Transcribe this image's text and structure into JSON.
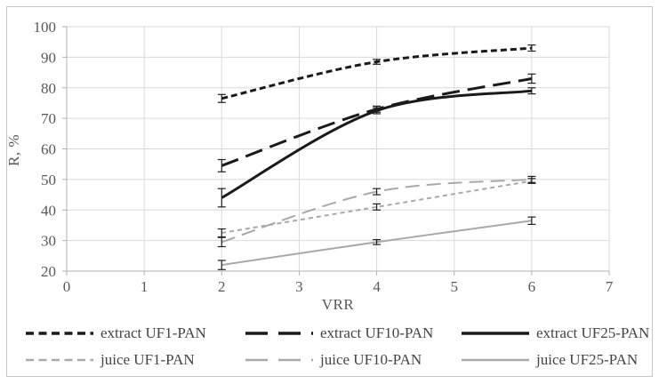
{
  "figure": {
    "background": "#ffffff",
    "frame_border_color": "#c6c6c6"
  },
  "chart_data": {
    "type": "line",
    "title": "",
    "xlabel": "VRR",
    "ylabel": "R, %",
    "xlim": [
      0,
      7
    ],
    "ylim": [
      20,
      100
    ],
    "x_ticks": [
      0,
      1,
      2,
      3,
      4,
      5,
      6,
      7
    ],
    "y_ticks": [
      20,
      30,
      40,
      50,
      60,
      70,
      80,
      90,
      100
    ],
    "grid": true,
    "legend_position": "bottom",
    "x": [
      2,
      4,
      6
    ],
    "series": [
      {
        "name": "extract UF1-PAN",
        "values": [
          76.5,
          88.5,
          93
        ],
        "errors": [
          1.3,
          0.8,
          1.0
        ],
        "color": "#1a1a1a",
        "dash": "dotted",
        "width": 3
      },
      {
        "name": "extract UF10-PAN",
        "values": [
          54.5,
          73,
          83
        ],
        "errors": [
          2.0,
          1.0,
          1.5
        ],
        "color": "#1a1a1a",
        "dash": "dashed",
        "width": 3
      },
      {
        "name": "extract UF25-PAN",
        "values": [
          44,
          72.5,
          79
        ],
        "errors": [
          3.0,
          1.0,
          1.0
        ],
        "color": "#1a1a1a",
        "dash": "solid",
        "width": 3
      },
      {
        "name": "juice UF1-PAN",
        "values": [
          32.5,
          41,
          49.5
        ],
        "errors": [
          1.3,
          1.0,
          0.8
        ],
        "color": "#a9a9a9",
        "dash": "dotted",
        "width": 2
      },
      {
        "name": "juice UF10-PAN",
        "values": [
          29.5,
          46,
          50
        ],
        "errors": [
          1.5,
          1.0,
          1.0
        ],
        "color": "#a9a9a9",
        "dash": "dashed",
        "width": 2
      },
      {
        "name": "juice UF25-PAN",
        "values": [
          22,
          29.5,
          36.5
        ],
        "errors": [
          1.5,
          0.8,
          1.2
        ],
        "color": "#a9a9a9",
        "dash": "solid",
        "width": 2
      }
    ],
    "error_bar_color": "#1f1f1f",
    "gridline_color": "#d9d9d9",
    "axis_line_color": "#b2b2b2",
    "tick_label_color": "#585858"
  }
}
